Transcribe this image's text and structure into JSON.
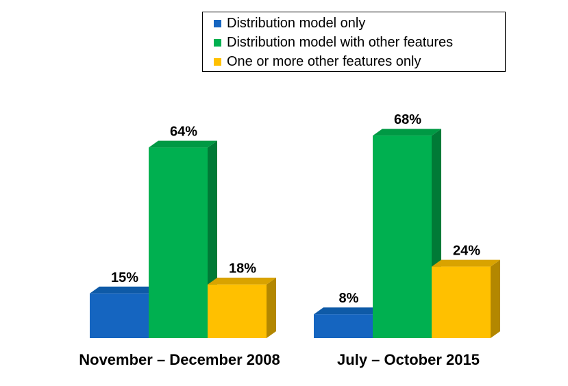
{
  "chart_data": {
    "type": "bar",
    "categories": [
      "November – December 2008",
      "July – October 2015"
    ],
    "series": [
      {
        "name": "Distribution model only",
        "values": [
          15,
          8
        ],
        "labels": [
          "15%",
          "8%"
        ],
        "color": "#1565C0",
        "side_color": "#0D4A8C",
        "top_color": "#0E5AA7"
      },
      {
        "name": "Distribution model with other features",
        "values": [
          64,
          68
        ],
        "labels": [
          "64%",
          "68%"
        ],
        "color": "#00B050",
        "side_color": "#007A36",
        "top_color": "#009944"
      },
      {
        "name": "One or more other features only",
        "values": [
          18,
          24
        ],
        "labels": [
          "18%",
          "24%"
        ],
        "color": "#FFC000",
        "side_color": "#B38700",
        "top_color": "#D9A300"
      }
    ],
    "legend_position": "top-right",
    "ylim": [
      0,
      70
    ],
    "grid": false,
    "style": "3d-column"
  }
}
